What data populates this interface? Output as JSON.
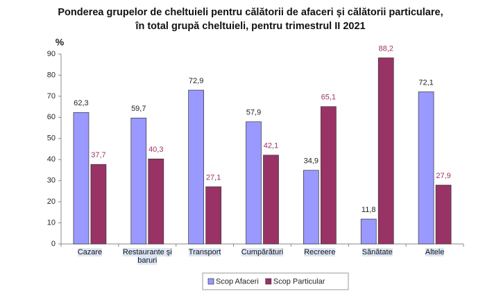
{
  "chart_data": {
    "type": "bar",
    "title": [
      "Ponderea grupelor de cheltuieli pentru călătorii de afaceri şi călătorii particulare,",
      "în total grupă cheltuieli, pentru trimestrul II 2021"
    ],
    "y_label": "%",
    "categories": [
      "Cazare",
      "Restaurante şi baruri",
      "Transport",
      "Cumpărături",
      "Recreere",
      "Sănătate",
      "Altele"
    ],
    "series": [
      {
        "name": "Scop Afaceri",
        "color": "#9999ff",
        "label_color": "#222222",
        "values": [
          62.3,
          59.7,
          72.9,
          57.9,
          34.9,
          11.8,
          72.1
        ],
        "value_labels": [
          "62,3",
          "59,7",
          "72,9",
          "57,9",
          "34,9",
          "11,8",
          "72,1"
        ]
      },
      {
        "name": "Scop Particular",
        "color": "#993366",
        "label_color": "#993366",
        "values": [
          37.7,
          40.3,
          27.1,
          42.1,
          65.1,
          88.2,
          27.9
        ],
        "value_labels": [
          "37,7",
          "40,3",
          "27,1",
          "42,1",
          "65,1",
          "88,2",
          "27,9"
        ]
      }
    ],
    "ylim": [
      0,
      90
    ],
    "yticks": [
      0,
      10,
      20,
      30,
      40,
      50,
      60,
      70,
      80,
      90
    ],
    "grid": false,
    "legend": "bottom"
  }
}
